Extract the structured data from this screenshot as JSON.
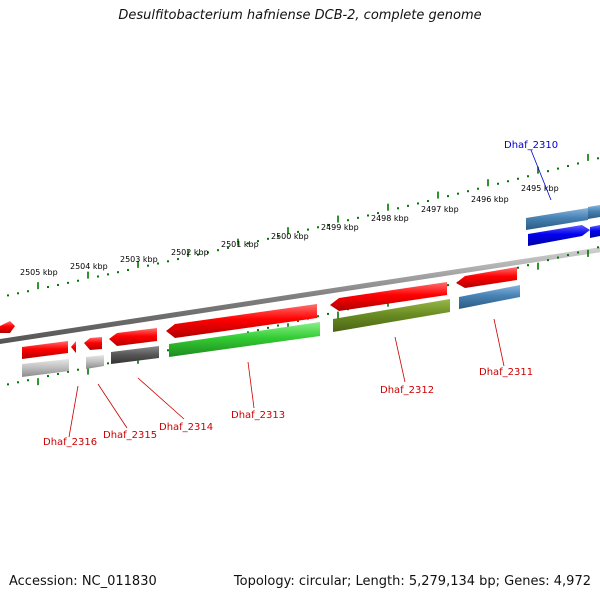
{
  "title": "Desulfitobacterium hafniense DCB-2, complete genome",
  "footer": {
    "accession": "Accession: NC_011830",
    "info": "Topology: circular; Length: 5,279,134 bp; Genes: 4,972"
  },
  "colors": {
    "forward_strand": "#ff0000",
    "reverse_strand_light": "#b0b0b0",
    "reverse_strand_dark": "#555555",
    "reverse_strand_green": "#33cc33",
    "reverse_strand_olive": "#6b8e23",
    "reverse_strand_steel": "#4682b4",
    "highlight_gene": "#0000ee",
    "tick": "#007700",
    "backbone": "#777777"
  },
  "kbp_labels": [
    "2495 kbp",
    "2496 kbp",
    "2497 kbp",
    "2498 kbp",
    "2499 kbp",
    "2500 kbp",
    "2501 kbp",
    "2502 kbp",
    "2503 kbp",
    "2504 kbp",
    "2505 kbp"
  ],
  "gene_labels": {
    "g2310": "Dhaf_2310",
    "g2311": "Dhaf_2311",
    "g2312": "Dhaf_2312",
    "g2313": "Dhaf_2313",
    "g2314": "Dhaf_2314",
    "g2315": "Dhaf_2315",
    "g2316": "Dhaf_2316"
  }
}
